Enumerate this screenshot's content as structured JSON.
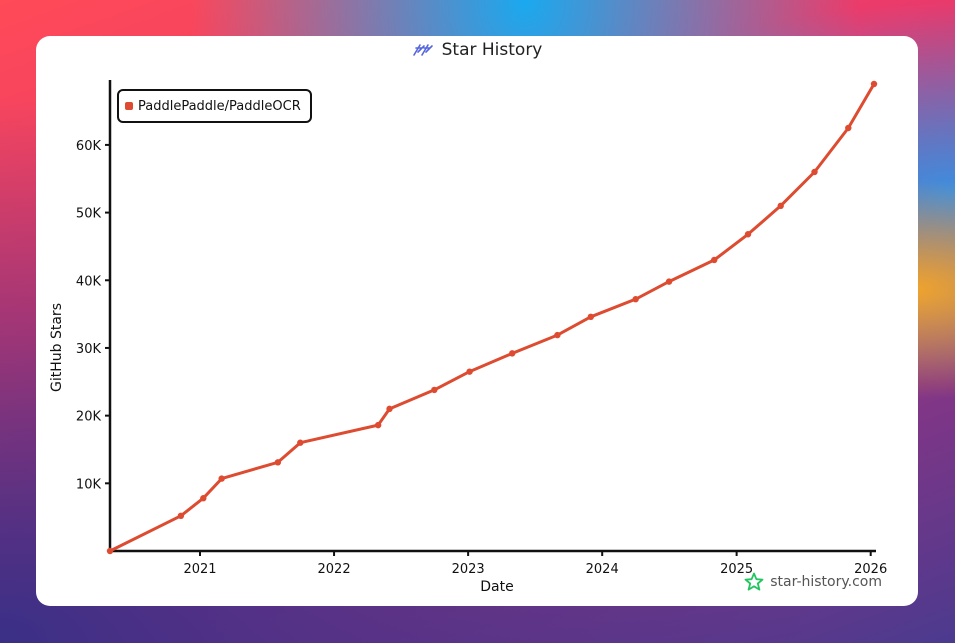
{
  "header": {
    "title": "Star History",
    "logo_icon": "star-history-logo-icon"
  },
  "footer": {
    "brand": "star-history.com",
    "brand_icon": "star-outline-icon",
    "brand_color": "#22c55e"
  },
  "chart_data": {
    "type": "line",
    "xlabel": "Date",
    "ylabel": "GitHub Stars",
    "x_ticks": [
      "2021",
      "2022",
      "2023",
      "2024",
      "2025",
      "2026"
    ],
    "y_ticks": [
      "10K",
      "20K",
      "30K",
      "40K",
      "50K",
      "60K"
    ],
    "y_tick_values": [
      10000,
      20000,
      30000,
      40000,
      50000,
      60000
    ],
    "xlim": [
      "2020-05-01",
      "2026-01-10"
    ],
    "ylim": [
      0,
      69000
    ],
    "legend_position": "top-left",
    "series": [
      {
        "name": "PaddlePaddle/PaddleOCR",
        "color": "#dd4b30",
        "x": [
          "2020-05-01",
          "2020-11-10",
          "2021-01-10",
          "2021-03-01",
          "2021-08-01",
          "2021-10-01",
          "2022-05-01",
          "2022-06-01",
          "2022-10-01",
          "2023-01-05",
          "2023-05-01",
          "2023-09-01",
          "2023-12-01",
          "2024-04-01",
          "2024-07-01",
          "2024-11-01",
          "2025-02-01",
          "2025-05-01",
          "2025-08-01",
          "2025-11-01",
          "2026-01-10"
        ],
        "values": [
          0,
          5200,
          7800,
          10700,
          13100,
          16000,
          18600,
          21000,
          23800,
          26500,
          29200,
          31900,
          34600,
          37200,
          39800,
          43000,
          46800,
          51000,
          56000,
          62500,
          69000
        ]
      }
    ]
  }
}
